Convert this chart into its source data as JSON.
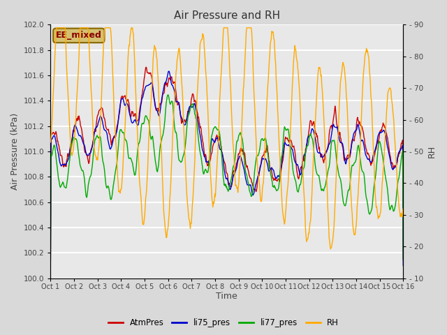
{
  "title": "Air Pressure and RH",
  "ylabel_left": "Air Pressure (kPa)",
  "ylabel_right": "RH",
  "xlabel": "Time",
  "annotation": "EE_mixed",
  "ylim_left": [
    100.0,
    102.0
  ],
  "ylim_right": [
    10,
    90
  ],
  "yticks_left": [
    100.0,
    100.2,
    100.4,
    100.6,
    100.8,
    101.0,
    101.2,
    101.4,
    101.6,
    101.8,
    102.0
  ],
  "yticks_right": [
    10,
    20,
    30,
    40,
    50,
    60,
    70,
    80,
    90
  ],
  "xtick_labels": [
    "Oct 1",
    "Oct 2",
    "Oct 3",
    "Oct 4",
    "Oct 5",
    "Oct 6",
    "Oct 7",
    "Oct 8",
    "Oct 9",
    "Oct 10",
    "Oct 11",
    "Oct 12",
    "Oct 13",
    "Oct 14",
    "Oct 15",
    "Oct 16"
  ],
  "colors": {
    "AtmPres": "#cc0000",
    "li75_pres": "#0000cc",
    "li77_pres": "#00aa00",
    "RH": "#ffaa00"
  },
  "bg_color": "#d9d9d9",
  "plot_bg_color": "#e8e8e8",
  "grid_color": "#ffffff",
  "annotation_bg": "#d4c070",
  "annotation_border": "#886600",
  "annotation_text_color": "#880000",
  "title_color": "#333333",
  "label_color": "#444444",
  "tick_color": "#444444"
}
